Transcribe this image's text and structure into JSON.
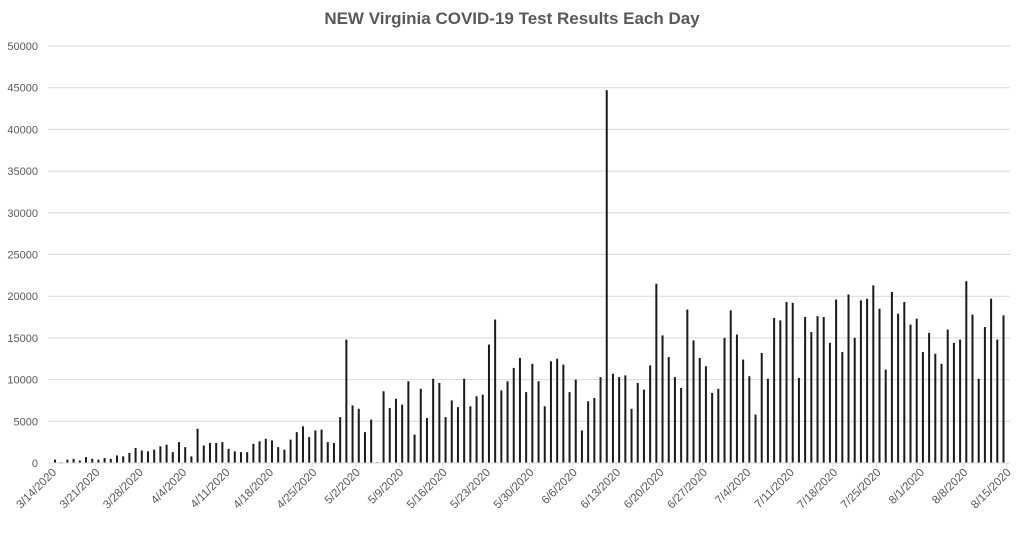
{
  "chart_data": {
    "type": "bar",
    "title": "NEW Virginia COVID-19 Test Results Each Day",
    "xlabel": "",
    "ylabel": "",
    "ylim": [
      0,
      50000
    ],
    "yticks": [
      0,
      5000,
      10000,
      15000,
      20000,
      25000,
      30000,
      35000,
      40000,
      45000,
      50000
    ],
    "grid": true,
    "legend": "none",
    "tick_labels": [
      "3/14/2020",
      "3/21/2020",
      "3/28/2020",
      "4/4/2020",
      "4/11/2020",
      "4/18/2020",
      "4/25/2020",
      "5/2/2020",
      "5/9/2020",
      "5/16/2020",
      "5/23/2020",
      "5/30/2020",
      "6/6/2020",
      "6/13/2020",
      "6/20/2020",
      "6/27/2020",
      "7/4/2020",
      "7/11/2020",
      "7/18/2020",
      "7/25/2020",
      "8/1/2020",
      "8/8/2020",
      "8/15/2020"
    ],
    "bar_color": "#1a1a1a",
    "series": [
      {
        "values": [
          400,
          100,
          400,
          500,
          300,
          700,
          500,
          400,
          600,
          500,
          900,
          800,
          1200,
          1800,
          1500,
          1400,
          1600,
          2000,
          2200,
          1300,
          2500,
          1900,
          800,
          4100,
          2100,
          2400,
          2400,
          2500,
          1700,
          1400,
          1300,
          1300,
          2300,
          2600,
          2900,
          2700,
          1900,
          1600,
          2800,
          3700,
          4400,
          3100,
          3900,
          4000,
          2500,
          2400,
          5500,
          14800,
          6900,
          6500,
          3700,
          5200,
          100,
          8600,
          6600,
          7700,
          7000,
          9800,
          3400,
          8900,
          5400,
          10100,
          9600,
          5500,
          7500,
          6700,
          10100,
          6800,
          8000,
          8200,
          14200,
          17200,
          8700,
          9800,
          11400,
          12600,
          8500,
          11900,
          9800,
          6800,
          12200,
          12500,
          11800,
          8500,
          10000,
          3900,
          7400,
          7800,
          10300,
          44700,
          10700,
          10300,
          10500,
          6500,
          9600,
          8800,
          11700,
          21500,
          15300,
          12700,
          10300,
          9000,
          18400,
          14700,
          12600,
          11600,
          8400,
          8900,
          15000,
          18300,
          15400,
          12400,
          10400,
          5800,
          13200,
          10100,
          17400,
          17100,
          19300,
          19200,
          10200,
          17500,
          15700,
          17600,
          17500,
          14400,
          19600,
          13300,
          20200,
          15000,
          19500,
          19700,
          21300,
          18500,
          11200,
          20500,
          17900,
          19300,
          16600,
          17300,
          13300,
          15600,
          13100,
          11900,
          16000,
          14400,
          14800,
          21800,
          17800,
          10100,
          16300,
          19700,
          14800,
          17700
        ]
      }
    ]
  }
}
